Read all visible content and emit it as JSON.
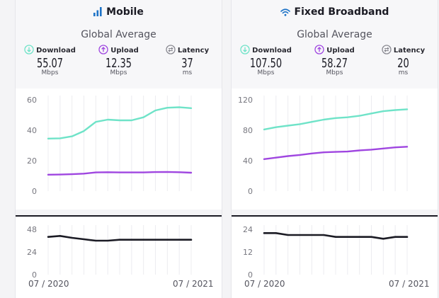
{
  "colors": {
    "download": "#6fe3c8",
    "upload": "#9f46e0",
    "latency": "#1b1b24",
    "accent": "#1e73c7",
    "grid": "#ececf0"
  },
  "panels": [
    {
      "title": "Mobile",
      "icon": "signal-bars-icon",
      "subtitle": "Global Average",
      "metrics": [
        {
          "label": "Download",
          "value": "55.07",
          "unit": "Mbps",
          "icon": "download-arrow-icon"
        },
        {
          "label": "Upload",
          "value": "12.35",
          "unit": "Mbps",
          "icon": "upload-arrow-icon"
        },
        {
          "label": "Latency",
          "value": "37",
          "unit": "ms",
          "icon": "latency-arrows-icon"
        }
      ],
      "x_start": "07 / 2020",
      "x_end": "07 / 2021"
    },
    {
      "title": "Fixed Broadband",
      "icon": "wifi-icon",
      "subtitle": "Global Average",
      "metrics": [
        {
          "label": "Download",
          "value": "107.50",
          "unit": "Mbps",
          "icon": "download-arrow-icon"
        },
        {
          "label": "Upload",
          "value": "58.27",
          "unit": "Mbps",
          "icon": "upload-arrow-icon"
        },
        {
          "label": "Latency",
          "value": "20",
          "unit": "ms",
          "icon": "latency-arrows-icon"
        }
      ],
      "x_start": "07 / 2020",
      "x_end": "07 / 2021"
    }
  ],
  "chart_data": [
    {
      "type": "line",
      "title": "Mobile - Download / Upload (Mbps)",
      "x": [
        "07/2020",
        "08/2020",
        "09/2020",
        "10/2020",
        "11/2020",
        "12/2020",
        "01/2021",
        "02/2021",
        "03/2021",
        "04/2021",
        "05/2021",
        "06/2021",
        "07/2021"
      ],
      "ylim": [
        0,
        60
      ],
      "yticks": [
        0,
        20,
        40,
        60
      ],
      "series": [
        {
          "name": "Download",
          "values": [
            34.5,
            34.7,
            36,
            39.5,
            45.5,
            47,
            46.5,
            46.5,
            48.5,
            53,
            54.8,
            55.1,
            54.5
          ]
        },
        {
          "name": "Upload",
          "values": [
            10.8,
            10.9,
            11.1,
            11.5,
            12.3,
            12.4,
            12.3,
            12.3,
            12.3,
            12.5,
            12.6,
            12.4,
            12.1
          ]
        }
      ]
    },
    {
      "type": "line",
      "title": "Mobile - Latency (ms)",
      "x": [
        "07/2020",
        "08/2020",
        "09/2020",
        "10/2020",
        "11/2020",
        "12/2020",
        "01/2021",
        "02/2021",
        "03/2021",
        "04/2021",
        "05/2021",
        "06/2021",
        "07/2021"
      ],
      "ylim": [
        0,
        48
      ],
      "yticks": [
        0,
        24,
        48
      ],
      "series": [
        {
          "name": "Latency",
          "values": [
            40,
            41,
            39,
            37.5,
            36,
            36,
            37,
            37,
            37,
            37,
            37,
            37,
            37
          ]
        }
      ]
    },
    {
      "type": "line",
      "title": "Fixed Broadband - Download / Upload (Mbps)",
      "x": [
        "07/2020",
        "08/2020",
        "09/2020",
        "10/2020",
        "11/2020",
        "12/2020",
        "01/2021",
        "02/2021",
        "03/2021",
        "04/2021",
        "05/2021",
        "06/2021",
        "07/2021"
      ],
      "ylim": [
        0,
        120
      ],
      "yticks": [
        0,
        40,
        80,
        120
      ],
      "series": [
        {
          "name": "Download",
          "values": [
            81,
            84,
            86,
            88,
            91,
            94,
            96,
            97,
            99,
            102,
            105,
            106.5,
            107.5
          ]
        },
        {
          "name": "Upload",
          "values": [
            42,
            44,
            46,
            47.5,
            49.5,
            51,
            51.5,
            52,
            53.5,
            54.5,
            56,
            57.5,
            58.3
          ]
        }
      ]
    },
    {
      "type": "line",
      "title": "Fixed Broadband - Latency (ms)",
      "x": [
        "07/2020",
        "08/2020",
        "09/2020",
        "10/2020",
        "11/2020",
        "12/2020",
        "01/2021",
        "02/2021",
        "03/2021",
        "04/2021",
        "05/2021",
        "06/2021",
        "07/2021"
      ],
      "ylim": [
        0,
        24
      ],
      "yticks": [
        0,
        12,
        24
      ],
      "series": [
        {
          "name": "Latency",
          "values": [
            22,
            22,
            21,
            21,
            21,
            21,
            20,
            20,
            20,
            20,
            19,
            20,
            20
          ]
        }
      ]
    }
  ]
}
